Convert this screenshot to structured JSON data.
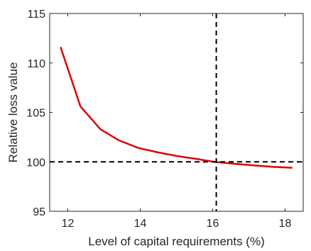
{
  "chart_data": {
    "type": "line",
    "title": "",
    "xlabel": "Level of capital requirements (%)",
    "ylabel": "Relative loss value",
    "xlim": [
      11.5,
      18.5
    ],
    "ylim": [
      95,
      115
    ],
    "xticks": [
      12,
      14,
      16,
      18
    ],
    "yticks": [
      95,
      100,
      105,
      110,
      115
    ],
    "xtick_labels": [
      "12",
      "14",
      "16",
      "18"
    ],
    "ytick_labels": [
      "95",
      "100",
      "105",
      "110",
      "115"
    ],
    "grid": false,
    "legend": "none",
    "series": [
      {
        "color": "#e00000",
        "x": [
          11.8,
          12.35,
          12.9,
          13.4,
          13.95,
          14.5,
          15.0,
          15.55,
          16.05,
          16.6,
          17.1,
          17.65,
          18.2
        ],
        "y": [
          111.6,
          105.6,
          103.3,
          102.2,
          101.4,
          100.95,
          100.6,
          100.3,
          100.0,
          99.8,
          99.65,
          99.5,
          99.4
        ]
      }
    ],
    "reference_lines": [
      {
        "orientation": "horizontal",
        "value": 100,
        "style": "dashed",
        "color": "#000000"
      },
      {
        "orientation": "vertical",
        "value": 16.1,
        "style": "dashed",
        "color": "#000000"
      }
    ]
  }
}
